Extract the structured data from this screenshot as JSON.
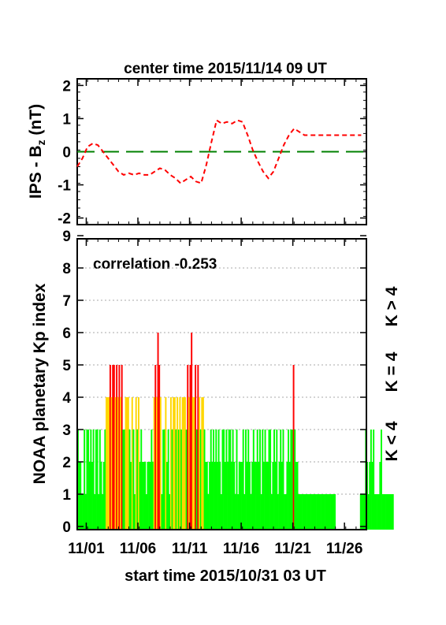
{
  "chart_data": [
    {
      "type": "line",
      "title": "center time 2015/11/14 09 UT",
      "ylabel_main": "IPS - B",
      "ylabel_subscript": "z",
      "ylabel_unit": " (nT)",
      "ylim": [
        -2.2,
        2.2
      ],
      "yticks": [
        "2",
        "1",
        "0",
        "-1",
        "-2"
      ],
      "series": [
        {
          "color": "#ff0000",
          "style": "dashed",
          "x": [
            0,
            0.5,
            1,
            1.5,
            2,
            2.5,
            3,
            3.5,
            4,
            4.5,
            5,
            5.5,
            6,
            6.5,
            7,
            7.5,
            8,
            8.5,
            9,
            9.5,
            10,
            10.5,
            11,
            11.5,
            12,
            12.5,
            13,
            13.5,
            14,
            14.5,
            15,
            15.5,
            16,
            16.5,
            17,
            17.5,
            18,
            18.5,
            19,
            19.5,
            20,
            20.5,
            21,
            21.5,
            22,
            22.5,
            23,
            23.5,
            24,
            24.5,
            25,
            25.5,
            26,
            26.5,
            27,
            27.5
          ],
          "y": [
            -0.45,
            -0.2,
            0.15,
            0.25,
            0.2,
            0.0,
            -0.2,
            -0.4,
            -0.6,
            -0.7,
            -0.65,
            -0.7,
            -0.65,
            -0.7,
            -0.7,
            -0.6,
            -0.5,
            -0.55,
            -0.7,
            -0.8,
            -0.95,
            -0.85,
            -0.75,
            -0.9,
            -0.95,
            -0.4,
            0.3,
            0.95,
            0.85,
            0.9,
            0.85,
            0.95,
            0.9,
            0.5,
            0.05,
            -0.3,
            -0.6,
            -0.8,
            -0.6,
            -0.2,
            0.2,
            0.5,
            0.7,
            0.6,
            0.5,
            0.5,
            0.5,
            0.5,
            0.5,
            0.5,
            0.5,
            0.5,
            0.5,
            0.5,
            0.5,
            0.5
          ]
        },
        {
          "color": "#008000",
          "style": "long-dash",
          "x": [
            0,
            28
          ],
          "y": [
            0,
            0
          ]
        }
      ]
    },
    {
      "type": "bar",
      "ylabel": "NOAA planetary Kp index",
      "xlabel": "start time 2015/10/31 03 UT",
      "annotation": "correlation -0.253",
      "ylim": [
        0,
        9
      ],
      "yticks": [
        "0",
        "1",
        "2",
        "3",
        "4",
        "5",
        "6",
        "7",
        "8",
        "9"
      ],
      "xlim_days": [
        0,
        28
      ],
      "xticks": [
        {
          "label": "11/01",
          "day": 0.875
        },
        {
          "label": "11/06",
          "day": 5.875
        },
        {
          "label": "11/11",
          "day": 10.875
        },
        {
          "label": "11/16",
          "day": 15.875
        },
        {
          "label": "11/21",
          "day": 20.875
        },
        {
          "label": "11/26",
          "day": 25.875
        }
      ],
      "grid": "dotted-horizontal",
      "legend": [
        {
          "label": "K < 4",
          "color": "#00ff00"
        },
        {
          "label": "K = 4",
          "color": "#ffd700"
        },
        {
          "label": "K > 4",
          "color": "#ff0000"
        }
      ],
      "bar_interval_hours": 3,
      "values": [
        3,
        2,
        2,
        1,
        1,
        3,
        1,
        3,
        3,
        2,
        3,
        2,
        3,
        1,
        3,
        3,
        1,
        3,
        2,
        1,
        2,
        3,
        4,
        4,
        4,
        5,
        4,
        5,
        5,
        4,
        5,
        4,
        5,
        4,
        5,
        3,
        3,
        4,
        4,
        4,
        3,
        2,
        4,
        3,
        1,
        4,
        3,
        4,
        2,
        3,
        2,
        2,
        2,
        1,
        2,
        2,
        2,
        3,
        2,
        4,
        5,
        4,
        6,
        5,
        4,
        1,
        3,
        3,
        4,
        2,
        3,
        1,
        4,
        3,
        4,
        4,
        3,
        4,
        3,
        4,
        3,
        4,
        4,
        4,
        3,
        5,
        4,
        5,
        6,
        4,
        4,
        5,
        3,
        5,
        4,
        3,
        4,
        4,
        3,
        2,
        2,
        1,
        2,
        3,
        2,
        3,
        2,
        3,
        2,
        3,
        2,
        1,
        3,
        3,
        2,
        3,
        2,
        3,
        3,
        2,
        3,
        2,
        1,
        3,
        1,
        2,
        2,
        2,
        3,
        1,
        3,
        2,
        3,
        2,
        1,
        2,
        3,
        2,
        2,
        3,
        2,
        3,
        1,
        3,
        2,
        3,
        2,
        2,
        3,
        3,
        1,
        2,
        3,
        2,
        3,
        1,
        2,
        3,
        2,
        3,
        1,
        1,
        2,
        3,
        2,
        3,
        3,
        5,
        3,
        2,
        2,
        1,
        1,
        1,
        1,
        1,
        1,
        1,
        1,
        1,
        1,
        1,
        1,
        1,
        1,
        1,
        1,
        1,
        1,
        1,
        1,
        1,
        1,
        1,
        1,
        1,
        1,
        1,
        1,
        1,
        0,
        0,
        0,
        0,
        0,
        0,
        0,
        0,
        0,
        0,
        0,
        0,
        0,
        0,
        0,
        0,
        0,
        0,
        0,
        1,
        1,
        1,
        1,
        3,
        2,
        1,
        2,
        3,
        2,
        3,
        1,
        1,
        1,
        1,
        2,
        3,
        1,
        1,
        1,
        1,
        1,
        1,
        1,
        1,
        1
      ]
    }
  ]
}
